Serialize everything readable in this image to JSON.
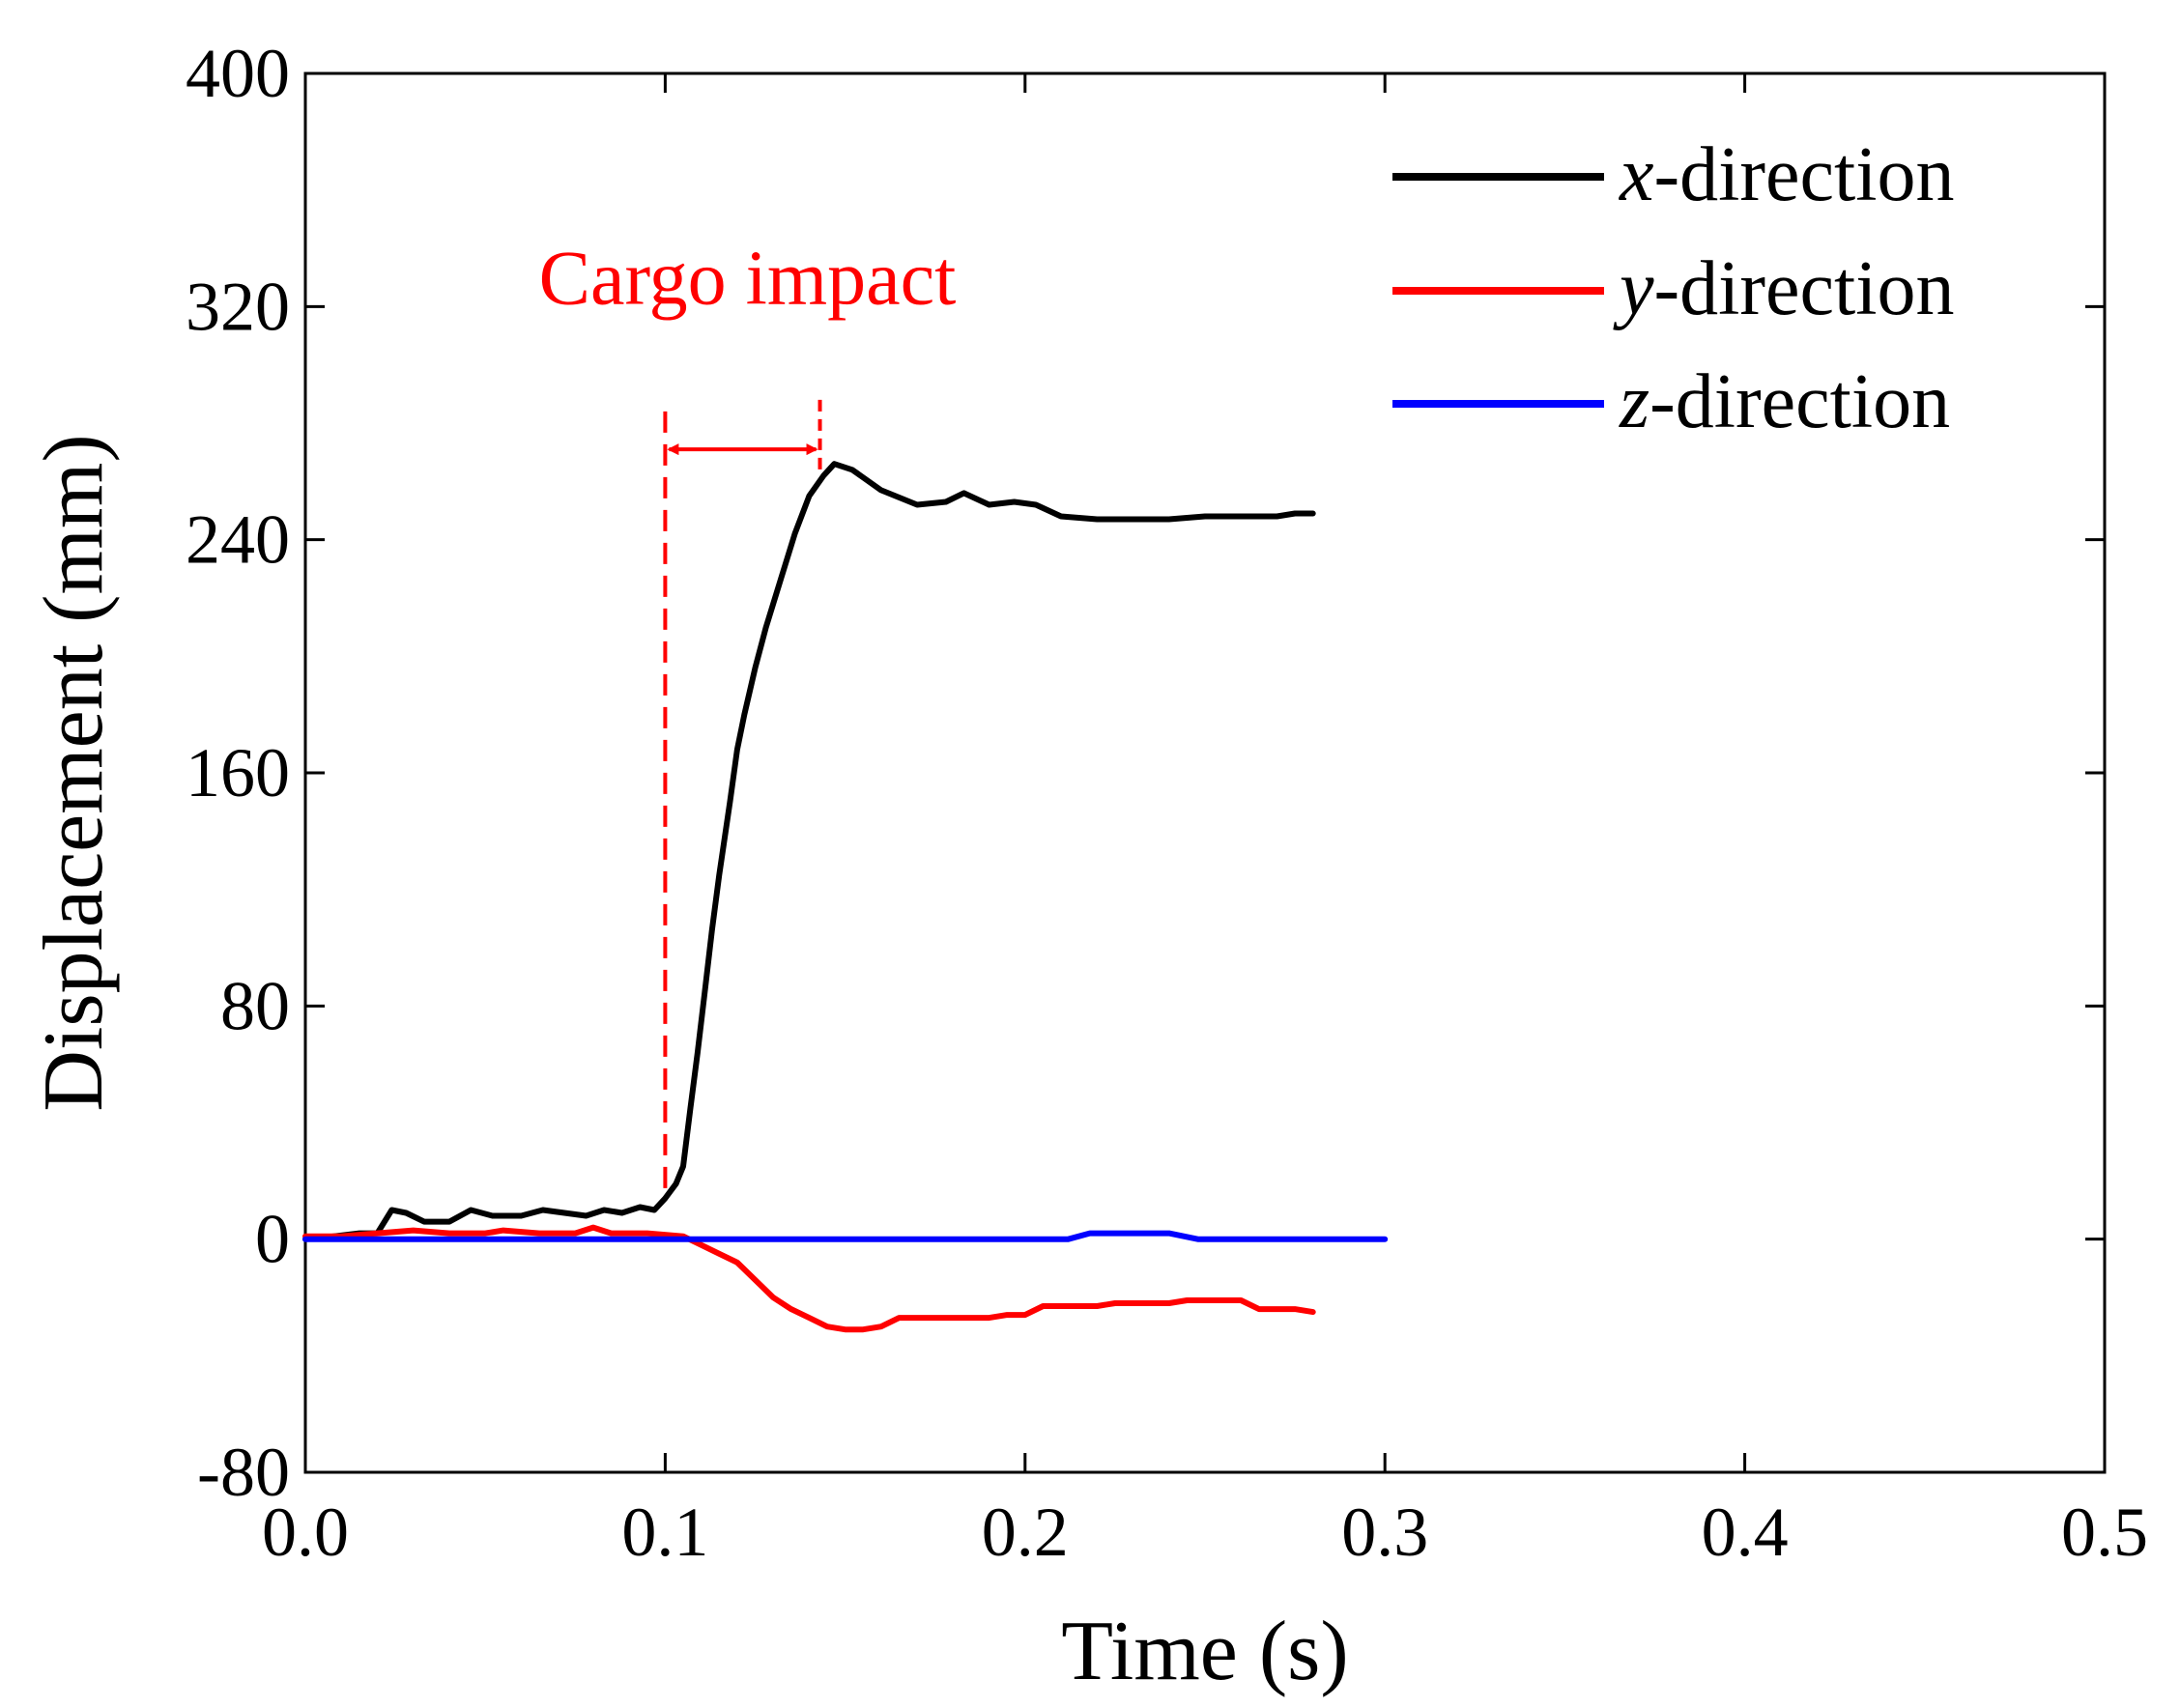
{
  "chart_data": {
    "type": "line",
    "xlabel": "Time (s)",
    "ylabel": "Displacement (mm)",
    "xlim": [
      0.0,
      0.5
    ],
    "ylim": [
      -80,
      400
    ],
    "x_ticks": [
      "0.0",
      "0.1",
      "0.2",
      "0.3",
      "0.4",
      "0.5"
    ],
    "y_ticks": [
      "-80",
      "0",
      "80",
      "160",
      "240",
      "320",
      "400"
    ],
    "x_tick_values": [
      0.0,
      0.1,
      0.2,
      0.3,
      0.4,
      0.5
    ],
    "y_tick_values": [
      -80,
      0,
      80,
      160,
      240,
      320,
      400
    ],
    "grid": false,
    "legend_position": "top-right",
    "series": [
      {
        "name": "x-direction",
        "legend_var": "x",
        "legend_rest": "-direction",
        "color": "#000000",
        "points": [
          [
            0.0,
            0
          ],
          [
            0.008,
            1
          ],
          [
            0.015,
            2
          ],
          [
            0.02,
            2
          ],
          [
            0.024,
            10
          ],
          [
            0.028,
            9
          ],
          [
            0.033,
            6
          ],
          [
            0.04,
            6
          ],
          [
            0.046,
            10
          ],
          [
            0.052,
            8
          ],
          [
            0.06,
            8
          ],
          [
            0.066,
            10
          ],
          [
            0.072,
            9
          ],
          [
            0.078,
            8
          ],
          [
            0.083,
            10
          ],
          [
            0.088,
            9
          ],
          [
            0.093,
            11
          ],
          [
            0.097,
            10
          ],
          [
            0.1,
            14
          ],
          [
            0.103,
            19
          ],
          [
            0.105,
            25
          ],
          [
            0.107,
            45
          ],
          [
            0.109,
            64
          ],
          [
            0.111,
            85
          ],
          [
            0.113,
            106
          ],
          [
            0.115,
            125
          ],
          [
            0.118,
            150
          ],
          [
            0.12,
            168
          ],
          [
            0.122,
            180
          ],
          [
            0.125,
            196
          ],
          [
            0.128,
            210
          ],
          [
            0.132,
            226
          ],
          [
            0.136,
            242
          ],
          [
            0.14,
            255
          ],
          [
            0.144,
            262
          ],
          [
            0.147,
            266
          ],
          [
            0.152,
            264
          ],
          [
            0.16,
            257
          ],
          [
            0.17,
            252
          ],
          [
            0.178,
            253
          ],
          [
            0.183,
            256
          ],
          [
            0.19,
            252
          ],
          [
            0.197,
            253
          ],
          [
            0.203,
            252
          ],
          [
            0.21,
            248
          ],
          [
            0.22,
            247
          ],
          [
            0.23,
            247
          ],
          [
            0.24,
            247
          ],
          [
            0.25,
            248
          ],
          [
            0.26,
            248
          ],
          [
            0.27,
            248
          ],
          [
            0.275,
            249
          ],
          [
            0.28,
            249
          ]
        ]
      },
      {
        "name": "y-direction",
        "legend_var": "y",
        "legend_rest": "-direction",
        "color": "#ff0000",
        "points": [
          [
            0.0,
            1
          ],
          [
            0.01,
            1
          ],
          [
            0.02,
            2
          ],
          [
            0.03,
            3
          ],
          [
            0.04,
            2
          ],
          [
            0.05,
            2
          ],
          [
            0.055,
            3
          ],
          [
            0.065,
            2
          ],
          [
            0.075,
            2
          ],
          [
            0.08,
            4
          ],
          [
            0.085,
            2
          ],
          [
            0.095,
            2
          ],
          [
            0.105,
            1
          ],
          [
            0.11,
            -2
          ],
          [
            0.115,
            -5
          ],
          [
            0.12,
            -8
          ],
          [
            0.125,
            -14
          ],
          [
            0.13,
            -20
          ],
          [
            0.135,
            -24
          ],
          [
            0.14,
            -27
          ],
          [
            0.145,
            -30
          ],
          [
            0.15,
            -31
          ],
          [
            0.155,
            -31
          ],
          [
            0.16,
            -30
          ],
          [
            0.165,
            -27
          ],
          [
            0.175,
            -27
          ],
          [
            0.19,
            -27
          ],
          [
            0.195,
            -26
          ],
          [
            0.2,
            -26
          ],
          [
            0.205,
            -23
          ],
          [
            0.21,
            -23
          ],
          [
            0.22,
            -23
          ],
          [
            0.225,
            -22
          ],
          [
            0.24,
            -22
          ],
          [
            0.245,
            -21
          ],
          [
            0.26,
            -21
          ],
          [
            0.265,
            -24
          ],
          [
            0.275,
            -24
          ],
          [
            0.28,
            -25
          ]
        ]
      },
      {
        "name": "z-direction",
        "legend_var": "z",
        "legend_rest": "-direction",
        "color": "#0000ff",
        "points": [
          [
            0.0,
            0
          ],
          [
            0.1,
            0
          ],
          [
            0.2,
            0
          ],
          [
            0.212,
            0
          ],
          [
            0.218,
            2
          ],
          [
            0.24,
            2
          ],
          [
            0.248,
            0
          ],
          [
            0.26,
            0
          ],
          [
            0.3,
            0
          ]
        ]
      }
    ],
    "annotation": {
      "text": "Cargo impact",
      "color": "#ff0000",
      "marker_start_x": 0.1,
      "marker_end_x": 0.143
    }
  }
}
